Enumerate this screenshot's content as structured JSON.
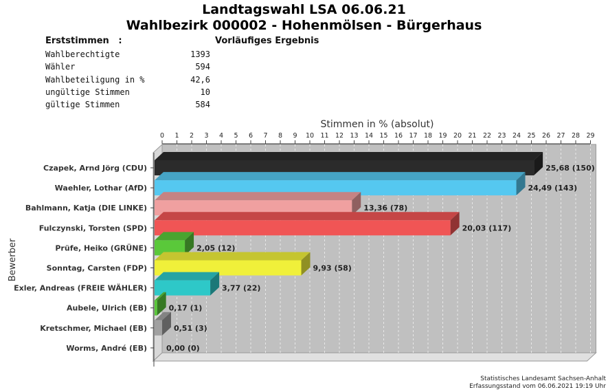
{
  "header": {
    "title_line1": "Landtagswahl LSA 06.06.21",
    "title_line2": "Wahlbezirk 000002 - Hohenmölsen - Bürgerhaus"
  },
  "stats": {
    "heading": "Erststimmen   :",
    "status": "Vorläufiges Ergebnis",
    "rows": [
      {
        "label": "Wahlberechtigte",
        "value": "1393"
      },
      {
        "label": "Wähler",
        "value": "594"
      },
      {
        "label": "Wahlbeteiligung in %",
        "value": "42,6"
      },
      {
        "label": "ungültige Stimmen",
        "value": "10"
      },
      {
        "label": "gültige Stimmen",
        "value": "584"
      }
    ]
  },
  "chart_data": {
    "type": "bar",
    "orientation": "horizontal",
    "xlabel": "Stimmen in % (absolut)",
    "ylabel": "Bewerber",
    "xlim": [
      0,
      29
    ],
    "xticks": [
      "0",
      "1",
      "2",
      "3",
      "4",
      "5",
      "6",
      "7",
      "8",
      "9",
      "10",
      "11",
      "12",
      "13",
      "14",
      "15",
      "16",
      "17",
      "18",
      "19",
      "20",
      "21",
      "22",
      "23",
      "24",
      "25",
      "26",
      "27",
      "28",
      "29"
    ],
    "categories": [
      "Czapek, Arnd Jörg (CDU)",
      "Waehler, Lothar (AfD)",
      "Bahlmann, Katja (DIE LINKE)",
      "Fulczynski, Torsten (SPD)",
      "Prüfe, Heiko (GRÜNE)",
      "Sonntag, Carsten (FDP)",
      "Exler, Andreas (FREIE WÄHLER)",
      "Aubele, Ulrich (EB)",
      "Kretschmer, Michael (EB)",
      "Worms, André (EB)"
    ],
    "values": [
      25.68,
      24.49,
      13.36,
      20.03,
      2.05,
      9.93,
      3.77,
      0.17,
      0.51,
      0.0
    ],
    "absolute": [
      150,
      143,
      78,
      117,
      12,
      58,
      22,
      1,
      3,
      0
    ],
    "value_labels": [
      "25,68 (150)",
      "24,49 (143)",
      "13,36 (78)",
      "20,03 (117)",
      "2,05 (12)",
      "9,93 (58)",
      "3,77 (22)",
      "0,17 (1)",
      "0,51 (3)",
      "0,00 (0)"
    ],
    "colors": [
      "#2b2b2b",
      "#55c8f0",
      "#f0a0a0",
      "#f05555",
      "#5ac83a",
      "#f0f03a",
      "#2ec8c8",
      "#5ac83a",
      "#a0a0a0",
      "#d8d8d8"
    ],
    "grid": true,
    "background": "#c0c0c0"
  },
  "footer": {
    "line1": "Statistisches Landesamt Sachsen-Anhalt",
    "line2": "Erfassungsstand vom 06.06.2021 19:19 Uhr"
  }
}
